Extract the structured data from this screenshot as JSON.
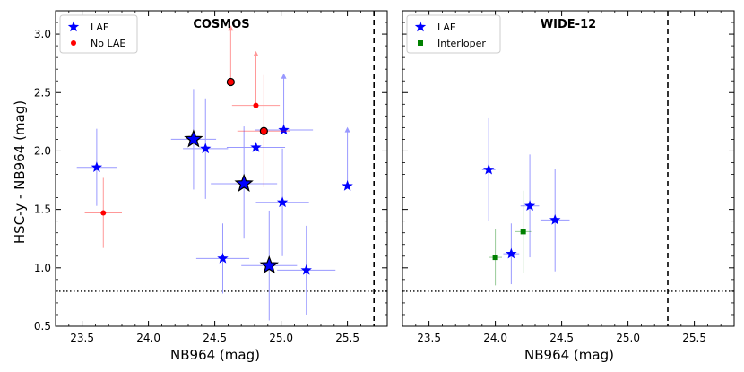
{
  "chart_data": [
    {
      "type": "scatter",
      "title": "COSMOS",
      "xlabel": "NB964 (mag)",
      "ylabel": "HSC-y - NB964 (mag)",
      "xlim": [
        23.3,
        25.8
      ],
      "ylim": [
        0.5,
        3.2
      ],
      "xticks": [
        "23.5",
        "24.0",
        "24.5",
        "25.0",
        "25.5"
      ],
      "yticks": [
        "0.5",
        "1.0",
        "1.5",
        "2.0",
        "2.5",
        "3.0"
      ],
      "hline": 0.8,
      "vline": 25.7,
      "legend": {
        "location": "top-left",
        "entries": [
          "LAE",
          "No LAE"
        ]
      },
      "series": [
        {
          "name": "LAE",
          "marker": "star",
          "color": "#0000ff",
          "points": [
            {
              "x": 23.61,
              "y": 1.86,
              "xerr": 0.15,
              "yerr_up": 0.33,
              "yerr_dn": 0.33,
              "highlight": false,
              "arrow": false
            },
            {
              "x": 24.34,
              "y": 2.1,
              "xerr": 0.17,
              "yerr_up": 0.43,
              "yerr_dn": 0.43,
              "highlight": true,
              "arrow": false
            },
            {
              "x": 24.43,
              "y": 2.02,
              "xerr": 0.17,
              "yerr_up": 0.43,
              "yerr_dn": 0.43,
              "highlight": false,
              "arrow": false
            },
            {
              "x": 24.81,
              "y": 2.03,
              "xerr": 0.22,
              "yerr_up": 0.0,
              "yerr_dn": 0.0,
              "highlight": false,
              "arrow": false
            },
            {
              "x": 25.02,
              "y": 2.18,
              "xerr": 0.22,
              "yerr_up": 0.47,
              "yerr_dn": 0.0,
              "highlight": false,
              "arrow": true
            },
            {
              "x": 24.72,
              "y": 1.72,
              "xerr": 0.25,
              "yerr_up": 0.49,
              "yerr_dn": 0.47,
              "highlight": true,
              "arrow": false
            },
            {
              "x": 25.5,
              "y": 1.7,
              "xerr": 0.25,
              "yerr_up": 0.49,
              "yerr_dn": 0.0,
              "highlight": false,
              "arrow": true
            },
            {
              "x": 25.01,
              "y": 1.56,
              "xerr": 0.2,
              "yerr_up": 0.46,
              "yerr_dn": 0.46,
              "highlight": false,
              "arrow": false
            },
            {
              "x": 24.56,
              "y": 1.08,
              "xerr": 0.2,
              "yerr_up": 0.3,
              "yerr_dn": 0.3,
              "highlight": false,
              "arrow": false
            },
            {
              "x": 24.91,
              "y": 1.02,
              "xerr": 0.21,
              "yerr_up": 0.47,
              "yerr_dn": 0.47,
              "highlight": true,
              "arrow": false
            },
            {
              "x": 25.19,
              "y": 0.98,
              "xerr": 0.22,
              "yerr_up": 0.38,
              "yerr_dn": 0.38,
              "highlight": false,
              "arrow": false
            }
          ]
        },
        {
          "name": "No LAE",
          "marker": "circle",
          "color": "#ff0000",
          "points": [
            {
              "x": 24.62,
              "y": 2.59,
              "xerr": 0.2,
              "yerr_up": 0.47,
              "yerr_dn": 0.0,
              "highlight": true,
              "arrow": true
            },
            {
              "x": 24.81,
              "y": 2.39,
              "xerr": 0.18,
              "yerr_up": 0.45,
              "yerr_dn": 0.0,
              "highlight": false,
              "arrow": true
            },
            {
              "x": 24.87,
              "y": 2.17,
              "xerr": 0.2,
              "yerr_up": 0.48,
              "yerr_dn": 0.48,
              "highlight": true,
              "arrow": false
            },
            {
              "x": 23.66,
              "y": 1.47,
              "xerr": 0.14,
              "yerr_up": 0.3,
              "yerr_dn": 0.3,
              "highlight": false,
              "arrow": false
            }
          ]
        }
      ]
    },
    {
      "type": "scatter",
      "title": "WIDE-12",
      "xlabel": "NB964 (mag)",
      "ylabel": "",
      "xlim": [
        23.3,
        25.8
      ],
      "ylim": [
        0.5,
        3.2
      ],
      "xticks": [
        "23.5",
        "24.0",
        "24.5",
        "25.0",
        "25.5"
      ],
      "yticks": [
        "0.5",
        "1.0",
        "1.5",
        "2.0",
        "2.5",
        "3.0"
      ],
      "hline": 0.8,
      "vline": 25.3,
      "legend": {
        "location": "top-left",
        "entries": [
          "LAE",
          "Interloper"
        ]
      },
      "series": [
        {
          "name": "LAE",
          "marker": "star",
          "color": "#0000ff",
          "points": [
            {
              "x": 23.95,
              "y": 1.84,
              "xerr": 0.05,
              "yerr_up": 0.44,
              "yerr_dn": 0.44,
              "highlight": false,
              "arrow": false
            },
            {
              "x": 24.26,
              "y": 1.53,
              "xerr": 0.07,
              "yerr_up": 0.44,
              "yerr_dn": 0.44,
              "highlight": false,
              "arrow": false
            },
            {
              "x": 24.45,
              "y": 1.41,
              "xerr": 0.11,
              "yerr_up": 0.44,
              "yerr_dn": 0.44,
              "highlight": false,
              "arrow": false
            },
            {
              "x": 24.12,
              "y": 1.12,
              "xerr": 0.06,
              "yerr_up": 0.26,
              "yerr_dn": 0.26,
              "highlight": false,
              "arrow": false
            }
          ]
        },
        {
          "name": "Interloper",
          "marker": "square",
          "color": "#008000",
          "points": [
            {
              "x": 24.21,
              "y": 1.31,
              "xerr": 0.06,
              "yerr_up": 0.35,
              "yerr_dn": 0.35,
              "highlight": false,
              "arrow": false
            },
            {
              "x": 24.0,
              "y": 1.09,
              "xerr": 0.05,
              "yerr_up": 0.24,
              "yerr_dn": 0.24,
              "highlight": false,
              "arrow": false
            }
          ]
        }
      ]
    }
  ]
}
